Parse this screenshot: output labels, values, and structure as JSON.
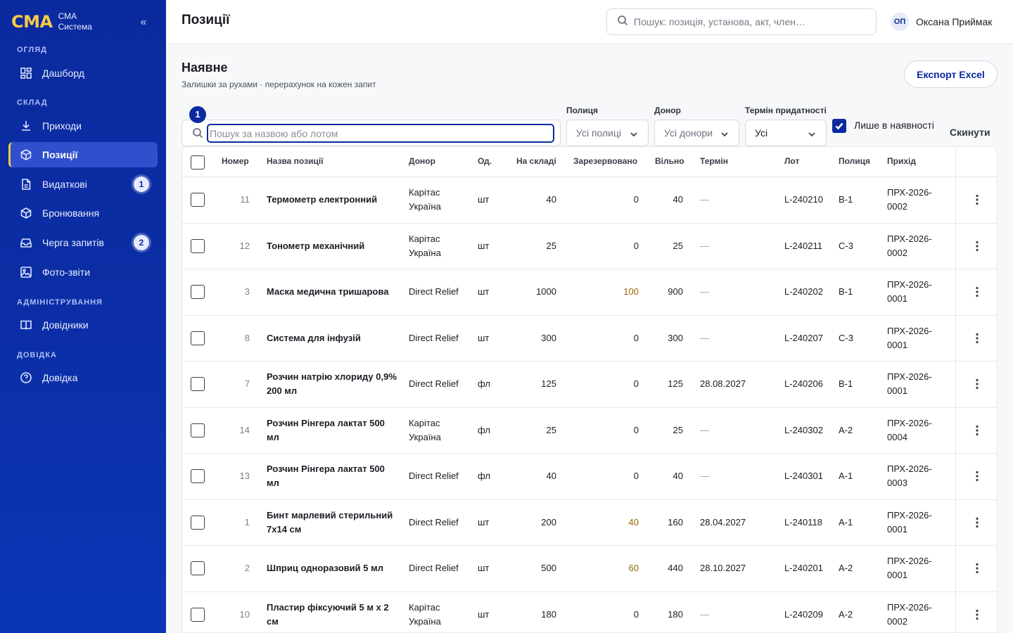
{
  "sidebar": {
    "logo": "СМА",
    "logo_sub_1": "СМА",
    "logo_sub_2": "Система",
    "collapse": "«",
    "sections": {
      "overview": "ОГЛЯД",
      "warehouse": "СКЛАД",
      "admin": "АДМІНІСТРУВАННЯ",
      "help": "ДОВІДКА"
    },
    "items": {
      "dashboard": "Дашборд",
      "arrivals": "Приходи",
      "positions": "Позиції",
      "expenses": "Видаткові",
      "expenses_badge": "1",
      "bookings": "Бронювання",
      "queue": "Черга запитів",
      "queue_badge": "2",
      "photos": "Фото-звіти",
      "directories": "Довідники",
      "help": "Довідка"
    }
  },
  "header": {
    "title": "Позиції",
    "search_placeholder": "Пошук: позиція, установа, акт, член…",
    "user_initials": "ОП",
    "user_name": "Оксана Приймак"
  },
  "content": {
    "title": "Наявне",
    "subtitle": "Залишки за рухами · перерахунок на кожен запит",
    "export_label": "Експорт Excel"
  },
  "filters": {
    "step_badge": "1",
    "search_placeholder": "Пошук за назвою або лотом",
    "shelf_label": "Полиця",
    "shelf_value": "Усі полиці",
    "donor_label": "Донор",
    "donor_value": "Усі донори",
    "expiry_label": "Термін придатності",
    "expiry_value": "Усі",
    "in_stock_label": "Лише в наявності",
    "reset_label": "Скинути"
  },
  "table": {
    "headers": {
      "number": "Номер",
      "name": "Назва позиції",
      "donor": "Донор",
      "unit": "Од.",
      "stock": "На складі",
      "reserved": "Зарезервовано",
      "free": "Вільно",
      "term": "Термін",
      "lot": "Лот",
      "shelf": "Полиця",
      "arrival": "Прихід"
    },
    "rows": [
      {
        "number": "11",
        "name": "Термометр електронний",
        "donor": "Карітас Україна",
        "unit": "шт",
        "stock": "40",
        "reserved": "0",
        "free": "40",
        "term": "—",
        "lot": "L-240210",
        "shelf": "B-1",
        "arrival": "ПРХ-2026-0002"
      },
      {
        "number": "12",
        "name": "Тонометр механічний",
        "donor": "Карітас Україна",
        "unit": "шт",
        "stock": "25",
        "reserved": "0",
        "free": "25",
        "term": "—",
        "lot": "L-240211",
        "shelf": "C-3",
        "arrival": "ПРХ-2026-0002"
      },
      {
        "number": "3",
        "name": "Маска медична тришарова",
        "donor": "Direct Relief",
        "unit": "шт",
        "stock": "1000",
        "reserved": "100",
        "free": "900",
        "term": "—",
        "lot": "L-240202",
        "shelf": "B-1",
        "arrival": "ПРХ-2026-0001"
      },
      {
        "number": "8",
        "name": "Система для інфузій",
        "donor": "Direct Relief",
        "unit": "шт",
        "stock": "300",
        "reserved": "0",
        "free": "300",
        "term": "—",
        "lot": "L-240207",
        "shelf": "C-3",
        "arrival": "ПРХ-2026-0001"
      },
      {
        "number": "7",
        "name": "Розчин натрію хлориду 0,9% 200 мл",
        "donor": "Direct Relief",
        "unit": "фл",
        "stock": "125",
        "reserved": "0",
        "free": "125",
        "term": "28.08.2027",
        "lot": "L-240206",
        "shelf": "B-1",
        "arrival": "ПРХ-2026-0001"
      },
      {
        "number": "14",
        "name": "Розчин Рінгера лактат 500 мл",
        "donor": "Карітас Україна",
        "unit": "фл",
        "stock": "25",
        "reserved": "0",
        "free": "25",
        "term": "—",
        "lot": "L-240302",
        "shelf": "A-2",
        "arrival": "ПРХ-2026-0004"
      },
      {
        "number": "13",
        "name": "Розчин Рінгера лактат 500 мл",
        "donor": "Direct Relief",
        "unit": "фл",
        "stock": "40",
        "reserved": "0",
        "free": "40",
        "term": "—",
        "lot": "L-240301",
        "shelf": "A-1",
        "arrival": "ПРХ-2026-0003"
      },
      {
        "number": "1",
        "name": "Бинт марлевий стерильний 7х14 см",
        "donor": "Direct Relief",
        "unit": "шт",
        "stock": "200",
        "reserved": "40",
        "free": "160",
        "term": "28.04.2027",
        "lot": "L-240118",
        "shelf": "A-1",
        "arrival": "ПРХ-2026-0001"
      },
      {
        "number": "2",
        "name": "Шприц одноразовий 5 мл",
        "donor": "Direct Relief",
        "unit": "шт",
        "stock": "500",
        "reserved": "60",
        "free": "440",
        "term": "28.10.2027",
        "lot": "L-240201",
        "shelf": "A-2",
        "arrival": "ПРХ-2026-0001"
      },
      {
        "number": "10",
        "name": "Пластир фіксуючий 5 м х 2 см",
        "donor": "Карітас Україна",
        "unit": "шт",
        "stock": "180",
        "reserved": "0",
        "free": "180",
        "term": "—",
        "lot": "L-240209",
        "shelf": "A-2",
        "arrival": "ПРХ-2026-0002"
      }
    ]
  },
  "colors": {
    "sidebar": "#0b2a9e",
    "accent": "#f7c948",
    "reserved_warn": "#9a6300"
  }
}
